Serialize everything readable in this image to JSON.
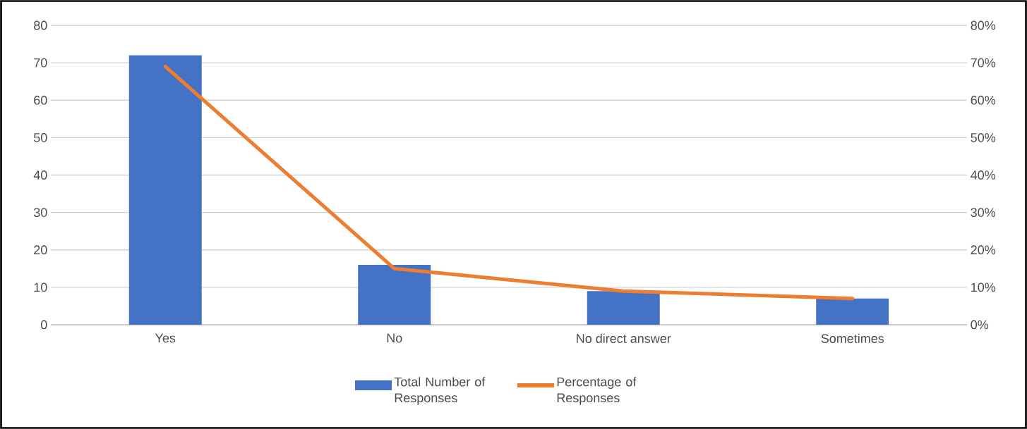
{
  "chart_data": {
    "type": "bar",
    "categories": [
      "Yes",
      "No",
      "No direct answer",
      "Sometimes"
    ],
    "series": [
      {
        "name": "Total Number of Responses",
        "color": "#4472c4",
        "values": [
          72,
          16,
          9,
          7
        ]
      },
      {
        "name": "Percentage of Responses",
        "type": "line",
        "axis": "y2",
        "color": "#ed7d31",
        "values": [
          69,
          15,
          9,
          7
        ]
      }
    ],
    "ylim": [
      0,
      80
    ],
    "yticks": [
      0,
      10,
      20,
      30,
      40,
      50,
      60,
      70,
      80
    ],
    "y2lim": [
      0,
      80
    ],
    "y2ticks": [
      {
        "value": 0,
        "label": "0%"
      },
      {
        "value": 10,
        "label": "10%"
      },
      {
        "value": 20,
        "label": "20%"
      },
      {
        "value": 30,
        "label": "30%"
      },
      {
        "value": 40,
        "label": "40%"
      },
      {
        "value": 50,
        "label": "50%"
      },
      {
        "value": 60,
        "label": "60%"
      },
      {
        "value": 70,
        "label": "70%"
      },
      {
        "value": 80,
        "label": "80%"
      }
    ],
    "grid": "y",
    "legend": "bottom"
  }
}
